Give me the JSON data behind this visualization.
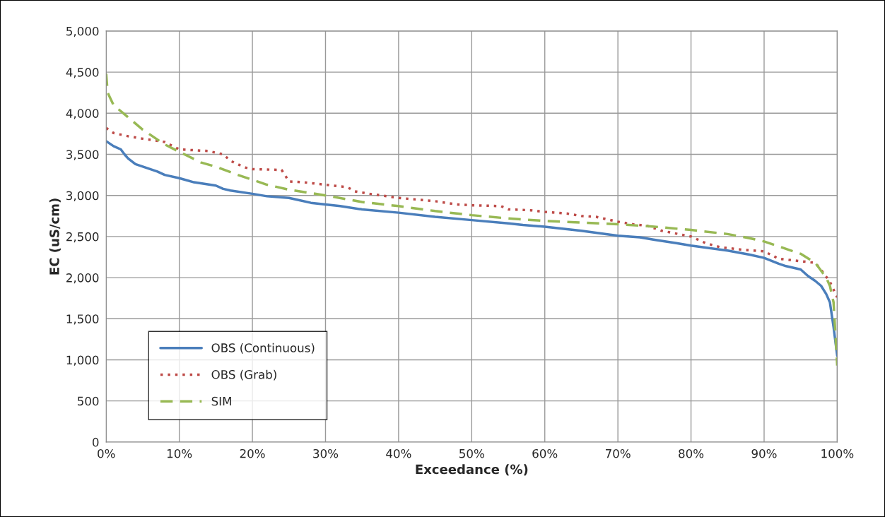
{
  "chart_data": {
    "type": "line",
    "xlabel": "Exceedance (%)",
    "ylabel": "EC (uS/cm)",
    "xlim": [
      0,
      100
    ],
    "ylim": [
      0,
      5000
    ],
    "xticks": [
      {
        "value": 0,
        "label": "0%"
      },
      {
        "value": 10,
        "label": "10%"
      },
      {
        "value": 20,
        "label": "20%"
      },
      {
        "value": 30,
        "label": "30%"
      },
      {
        "value": 40,
        "label": "40%"
      },
      {
        "value": 50,
        "label": "50%"
      },
      {
        "value": 60,
        "label": "60%"
      },
      {
        "value": 70,
        "label": "70%"
      },
      {
        "value": 80,
        "label": "80%"
      },
      {
        "value": 90,
        "label": "90%"
      },
      {
        "value": 100,
        "label": "100%"
      }
    ],
    "yticks": [
      0,
      500,
      {
        "value": 1000,
        "label": "1,000"
      },
      {
        "value": 1500,
        "label": "1,500"
      },
      {
        "value": 2000,
        "label": "2,000"
      },
      {
        "value": 2500,
        "label": "2,500"
      },
      {
        "value": 3000,
        "label": "3,000"
      },
      {
        "value": 3500,
        "label": "3,500"
      },
      {
        "value": 4000,
        "label": "4,000"
      },
      {
        "value": 4500,
        "label": "4,500"
      },
      {
        "value": 5000,
        "label": "5,000"
      }
    ],
    "grid": true,
    "legend": "bottom left",
    "marker": "none",
    "series": [
      {
        "name": "OBS (Continuous)",
        "color": "#4a7ebb",
        "line_style": "solid",
        "x": [
          0,
          1,
          2,
          2.5,
          3,
          4,
          5,
          7,
          8,
          10,
          12,
          15,
          16,
          17,
          20,
          22,
          25,
          26,
          28,
          30,
          32,
          35,
          40,
          45,
          50,
          55,
          57,
          60,
          65,
          70,
          73,
          75,
          78,
          80,
          85,
          88,
          90,
          92,
          93,
          95,
          96,
          97,
          97.8,
          98.5,
          99,
          99.5,
          100
        ],
        "values": [
          3660,
          3600,
          3560,
          3500,
          3450,
          3380,
          3350,
          3290,
          3250,
          3210,
          3160,
          3120,
          3080,
          3060,
          3020,
          2990,
          2970,
          2950,
          2910,
          2890,
          2870,
          2830,
          2790,
          2740,
          2700,
          2660,
          2640,
          2620,
          2570,
          2510,
          2490,
          2460,
          2420,
          2390,
          2330,
          2280,
          2240,
          2170,
          2140,
          2100,
          2020,
          1960,
          1900,
          1800,
          1700,
          1400,
          1050
        ]
      },
      {
        "name": "OBS (Grab)",
        "color": "#be4b48",
        "line_style": "dotted",
        "x": [
          0,
          1,
          3,
          5,
          8,
          10,
          12,
          14,
          16,
          17,
          19,
          20,
          24,
          25,
          27,
          30,
          33,
          34,
          36,
          40,
          45,
          48,
          50,
          54,
          55,
          58,
          60,
          63,
          65,
          67,
          70,
          72,
          74,
          76,
          80,
          82,
          84,
          87,
          90,
          92,
          95,
          97,
          98,
          99,
          100
        ],
        "values": [
          3820,
          3760,
          3720,
          3690,
          3650,
          3560,
          3550,
          3540,
          3500,
          3420,
          3340,
          3320,
          3310,
          3170,
          3160,
          3130,
          3100,
          3050,
          3020,
          2970,
          2930,
          2890,
          2880,
          2870,
          2830,
          2820,
          2800,
          2780,
          2750,
          2740,
          2680,
          2650,
          2630,
          2570,
          2500,
          2420,
          2370,
          2340,
          2320,
          2230,
          2200,
          2180,
          2070,
          1950,
          1760
        ]
      },
      {
        "name": "SIM",
        "color": "#98b954",
        "line_style": "dashed",
        "x": [
          0,
          0.2,
          1,
          3,
          5,
          8,
          10,
          13,
          15,
          18,
          20,
          22,
          25,
          30,
          35,
          40,
          45,
          50,
          55,
          60,
          65,
          70,
          75,
          80,
          85,
          88,
          90,
          93,
          95,
          97,
          98.5,
          99,
          99.5,
          100
        ],
        "values": [
          4480,
          4250,
          4100,
          3950,
          3800,
          3620,
          3530,
          3400,
          3350,
          3250,
          3190,
          3130,
          3070,
          3000,
          2920,
          2870,
          2810,
          2760,
          2720,
          2690,
          2670,
          2650,
          2620,
          2580,
          2530,
          2480,
          2440,
          2350,
          2290,
          2180,
          2000,
          1900,
          1700,
          930
        ]
      }
    ]
  }
}
